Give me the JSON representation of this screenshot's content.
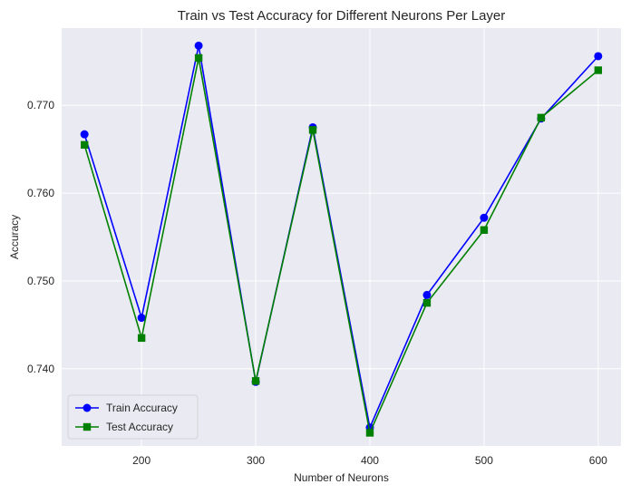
{
  "chart_data": {
    "type": "line",
    "title": "Train vs Test Accuracy for Different Neurons Per Layer",
    "xlabel": "Number of Neurons",
    "ylabel": "Accuracy",
    "x": [
      150,
      200,
      250,
      300,
      350,
      400,
      450,
      500,
      550,
      600
    ],
    "xlim": [
      130,
      620
    ],
    "ylim": [
      0.7312,
      0.7788
    ],
    "xticks": [
      200,
      300,
      400,
      500,
      600
    ],
    "yticks": [
      0.74,
      0.75,
      0.76,
      0.77
    ],
    "ytick_labels": [
      "0.740",
      "0.750",
      "0.760",
      "0.770"
    ],
    "grid": true,
    "legend_position": "lower-left",
    "series": [
      {
        "name": "Train Accuracy",
        "color": "#0000ff",
        "marker": "circle",
        "values": [
          0.7667,
          0.7458,
          0.7768,
          0.7385,
          0.7675,
          0.7333,
          0.7484,
          0.7572,
          0.7685,
          0.7756
        ]
      },
      {
        "name": "Test Accuracy",
        "color": "#008000",
        "marker": "square",
        "values": [
          0.7655,
          0.7435,
          0.7754,
          0.7386,
          0.7672,
          0.7327,
          0.7475,
          0.7558,
          0.7686,
          0.774
        ]
      }
    ]
  },
  "style": {
    "plot_bg": "#eaeaf2",
    "grid_color": "#ffffff",
    "text_color": "#262626"
  }
}
